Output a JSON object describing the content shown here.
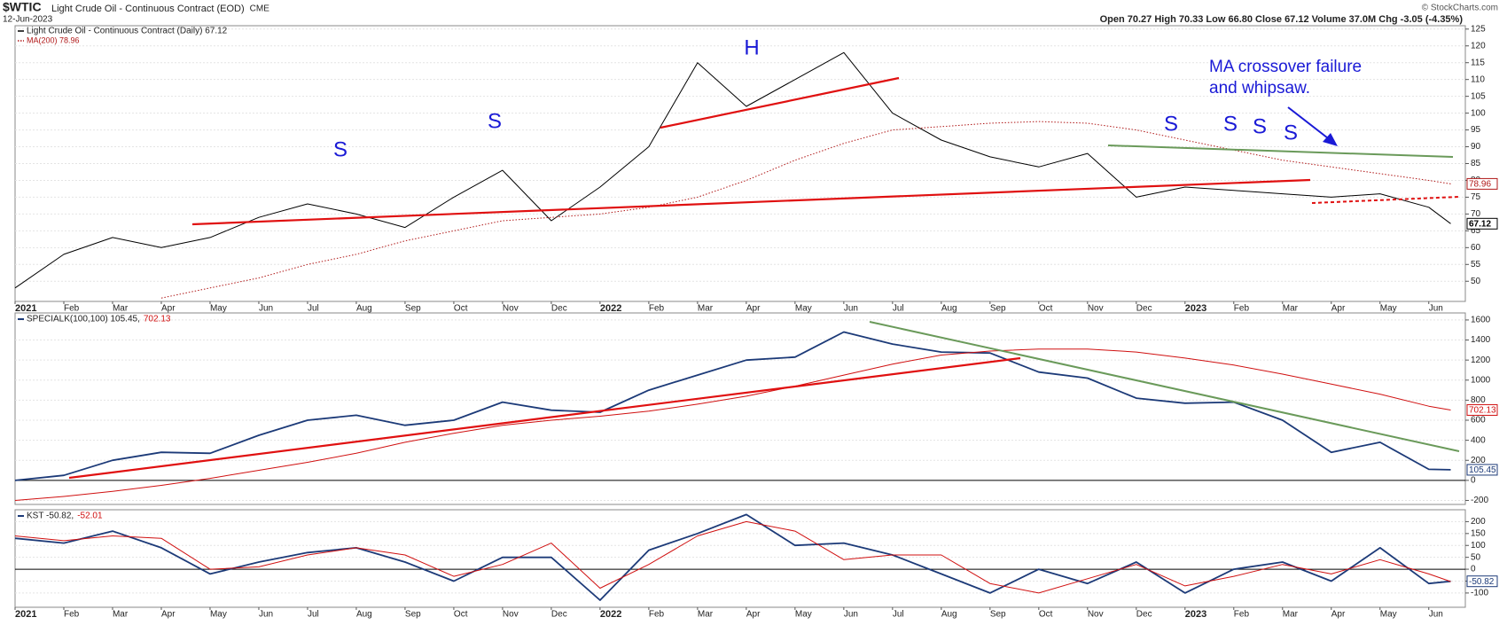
{
  "header": {
    "symbol": "$WTIC",
    "name": "Light Crude Oil - Continuous Contract (EOD)",
    "exchange": "CME",
    "date": "12-Jun-2023",
    "quote": "Open 70.27  High 70.33  Low 66.80  Close 67.12  Volume 37.0M  Chg -3.05 (-4.35%)",
    "credit": "© StockCharts.com"
  },
  "chart_data": [
    {
      "type": "line",
      "x": [
        0,
        1,
        2,
        3,
        4,
        5,
        6,
        7,
        8,
        9,
        10,
        11,
        12,
        13,
        14,
        15,
        16,
        17,
        18,
        19,
        20,
        21,
        22,
        23,
        24,
        25,
        26,
        27,
        28,
        29,
        29.45
      ],
      "xlim": [
        0,
        29.75
      ],
      "xticks": [
        {
          "value": 0,
          "label": "2021"
        },
        {
          "value": 1,
          "label": "Feb"
        },
        {
          "value": 2,
          "label": "Mar"
        },
        {
          "value": 3,
          "label": "Apr"
        },
        {
          "value": 4,
          "label": "May"
        },
        {
          "value": 5,
          "label": "Jun"
        },
        {
          "value": 6,
          "label": "Jul"
        },
        {
          "value": 7,
          "label": "Aug"
        },
        {
          "value": 8,
          "label": "Sep"
        },
        {
          "value": 9,
          "label": "Oct"
        },
        {
          "value": 10,
          "label": "Nov"
        },
        {
          "value": 11,
          "label": "Dec"
        },
        {
          "value": 12,
          "label": "2022"
        },
        {
          "value": 13,
          "label": "Feb"
        },
        {
          "value": 14,
          "label": "Mar"
        },
        {
          "value": 15,
          "label": "Apr"
        },
        {
          "value": 16,
          "label": "May"
        },
        {
          "value": 17,
          "label": "Jun"
        },
        {
          "value": 18,
          "label": "Jul"
        },
        {
          "value": 19,
          "label": "Aug"
        },
        {
          "value": 20,
          "label": "Sep"
        },
        {
          "value": 21,
          "label": "Oct"
        },
        {
          "value": 22,
          "label": "Nov"
        },
        {
          "value": 23,
          "label": "Dec"
        },
        {
          "value": 24,
          "label": "2023"
        },
        {
          "value": 25,
          "label": "Feb"
        },
        {
          "value": 26,
          "label": "Mar"
        },
        {
          "value": 27,
          "label": "Apr"
        },
        {
          "value": 28,
          "label": "May"
        },
        {
          "value": 29,
          "label": "Jun"
        }
      ],
      "ylim": [
        44,
        126
      ],
      "yticks": [
        50,
        55,
        60,
        65,
        70,
        75,
        80,
        85,
        90,
        95,
        100,
        105,
        110,
        115,
        120,
        125
      ],
      "series": [
        {
          "name": "Light Crude Oil - Continuous Contract (Daily) 67.12",
          "color": "#000000",
          "line_width": 1,
          "values": [
            48,
            58,
            63,
            60,
            63,
            69,
            73,
            70,
            66,
            75,
            83,
            68,
            78,
            90,
            115,
            102,
            110,
            118,
            100,
            92,
            87,
            84,
            88,
            75,
            78,
            77,
            76,
            75,
            76,
            72,
            67.12
          ]
        },
        {
          "name": "MA(200) 78.96",
          "color": "#b01818",
          "line_width": 1,
          "dotted": true,
          "values": [
            null,
            null,
            null,
            45,
            48,
            51,
            55,
            58,
            62,
            65,
            68,
            69,
            70,
            72,
            75,
            80,
            86,
            91,
            95,
            96,
            97,
            97.5,
            97,
            95,
            92,
            89,
            86,
            84,
            82,
            80,
            78.96
          ]
        }
      ],
      "annotations": [
        "S",
        "S",
        "H",
        "S",
        "S",
        "S",
        "S",
        "MA crossover failure",
        "and whipsaw."
      ]
    },
    {
      "type": "line",
      "title": "SPECIALK(100,100) 105.45,",
      "x": [
        0,
        1,
        2,
        3,
        4,
        5,
        6,
        7,
        8,
        9,
        10,
        11,
        12,
        13,
        14,
        15,
        16,
        17,
        18,
        19,
        20,
        21,
        22,
        23,
        24,
        25,
        26,
        27,
        28,
        29,
        29.45
      ],
      "xlim": [
        0,
        29.75
      ],
      "ylim": [
        -240,
        1670
      ],
      "yticks": [
        -200,
        0,
        200,
        400,
        600,
        800,
        1000,
        1200,
        1400,
        1600
      ],
      "series": [
        {
          "color": "#1c3a78",
          "line_width": 1.8,
          "values": [
            0,
            50,
            200,
            280,
            270,
            450,
            600,
            650,
            550,
            600,
            780,
            700,
            680,
            900,
            1050,
            1200,
            1230,
            1480,
            1360,
            1280,
            1270,
            1080,
            1020,
            820,
            770,
            780,
            600,
            280,
            380,
            110,
            105.45
          ]
        },
        {
          "color": "#d01010",
          "line_width": 1,
          "values": [
            -200,
            -160,
            -110,
            -50,
            20,
            100,
            180,
            270,
            380,
            470,
            550,
            600,
            640,
            690,
            760,
            840,
            940,
            1050,
            1160,
            1250,
            1290,
            1310,
            1310,
            1280,
            1220,
            1150,
            1060,
            960,
            860,
            740,
            702.13
          ]
        }
      ]
    },
    {
      "type": "line",
      "title": "KST -50.82,",
      "x": [
        0,
        1,
        2,
        3,
        4,
        5,
        6,
        7,
        8,
        9,
        10,
        11,
        12,
        13,
        14,
        15,
        16,
        17,
        18,
        19,
        20,
        21,
        22,
        23,
        24,
        25,
        26,
        27,
        28,
        29,
        29.45
      ],
      "xlim": [
        0,
        29.75
      ],
      "xticks": [
        {
          "value": 0,
          "label": "2021"
        },
        {
          "value": 1,
          "label": "Feb"
        },
        {
          "value": 2,
          "label": "Mar"
        },
        {
          "value": 3,
          "label": "Apr"
        },
        {
          "value": 4,
          "label": "May"
        },
        {
          "value": 5,
          "label": "Jun"
        },
        {
          "value": 6,
          "label": "Jul"
        },
        {
          "value": 7,
          "label": "Aug"
        },
        {
          "value": 8,
          "label": "Sep"
        },
        {
          "value": 9,
          "label": "Oct"
        },
        {
          "value": 10,
          "label": "Nov"
        },
        {
          "value": 11,
          "label": "Dec"
        },
        {
          "value": 12,
          "label": "2022"
        },
        {
          "value": 13,
          "label": "Feb"
        },
        {
          "value": 14,
          "label": "Mar"
        },
        {
          "value": 15,
          "label": "Apr"
        },
        {
          "value": 16,
          "label": "May"
        },
        {
          "value": 17,
          "label": "Jun"
        },
        {
          "value": 18,
          "label": "Jul"
        },
        {
          "value": 19,
          "label": "Aug"
        },
        {
          "value": 20,
          "label": "Sep"
        },
        {
          "value": 21,
          "label": "Oct"
        },
        {
          "value": 22,
          "label": "Nov"
        },
        {
          "value": 23,
          "label": "Dec"
        },
        {
          "value": 24,
          "label": "2023"
        },
        {
          "value": 25,
          "label": "Feb"
        },
        {
          "value": 26,
          "label": "Mar"
        },
        {
          "value": 27,
          "label": "Apr"
        },
        {
          "value": 28,
          "label": "May"
        },
        {
          "value": 29,
          "label": "Jun"
        }
      ],
      "ylim": [
        -160,
        250
      ],
      "yticks": [
        -100,
        -50,
        0,
        50,
        100,
        150,
        200
      ],
      "series": [
        {
          "color": "#1c3a78",
          "line_width": 1.8,
          "values": [
            130,
            110,
            160,
            90,
            -20,
            30,
            70,
            90,
            30,
            -50,
            50,
            50,
            -130,
            80,
            150,
            230,
            100,
            110,
            60,
            -20,
            -100,
            0,
            -60,
            30,
            -100,
            0,
            30,
            -50,
            90,
            -60,
            -50.82
          ]
        },
        {
          "color": "#d01010",
          "line_width": 1,
          "values": [
            140,
            120,
            140,
            130,
            0,
            10,
            60,
            90,
            60,
            -30,
            20,
            110,
            -80,
            20,
            140,
            200,
            160,
            40,
            60,
            60,
            -60,
            -100,
            -40,
            20,
            -70,
            -30,
            20,
            -20,
            40,
            -20,
            -52.01
          ]
        }
      ]
    }
  ]
}
